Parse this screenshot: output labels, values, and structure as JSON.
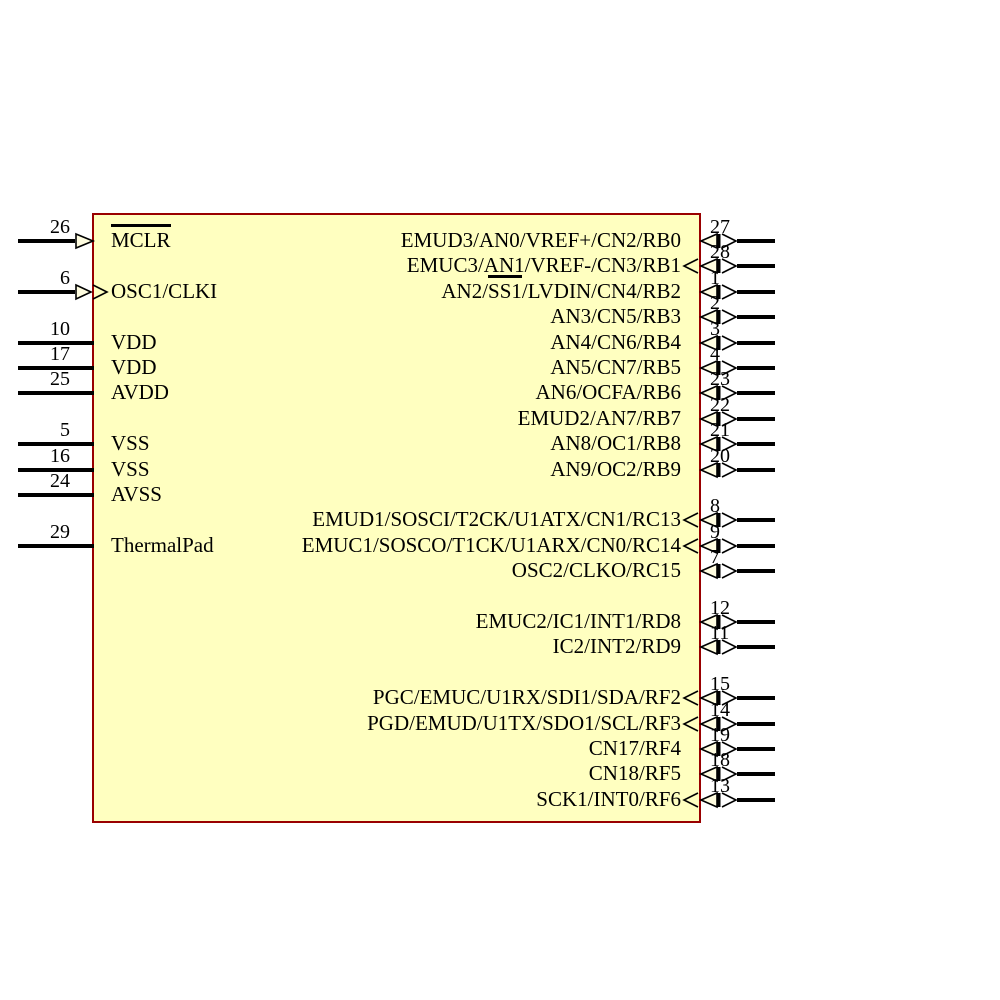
{
  "diagram": {
    "type": "ic-pinout-schematic",
    "colors": {
      "component_fill": "#FFFFC0",
      "component_border": "#990000",
      "line_color": "#000000",
      "text_color": "#000000",
      "arrow_fill": "#FFFDE0",
      "page_background": "#FFFFFF"
    },
    "icons": {
      "input": "hollow-right-triangle-arrow",
      "clock_input": "hollow-right-triangle-with-open-chevron",
      "bidirectional": "hollow-left-triangle-bar-open-right-chevron",
      "inner_chevron": "open-left-chevron"
    },
    "left_pins": [
      {
        "number": "26",
        "label": "MCLR",
        "overline": "MCLR",
        "arrow": "input",
        "row": 0
      },
      {
        "number": "6",
        "label": "OSC1/CLKI",
        "arrow": "clock-input",
        "row": 2
      },
      {
        "number": "10",
        "label": "VDD",
        "arrow": "none",
        "row": 4
      },
      {
        "number": "17",
        "label": "VDD",
        "arrow": "none",
        "row": 5
      },
      {
        "number": "25",
        "label": "AVDD",
        "arrow": "none",
        "row": 6
      },
      {
        "number": "5",
        "label": "VSS",
        "arrow": "none",
        "row": 8
      },
      {
        "number": "16",
        "label": "VSS",
        "arrow": "none",
        "row": 9
      },
      {
        "number": "24",
        "label": "AVSS",
        "arrow": "none",
        "row": 10
      },
      {
        "number": "29",
        "label": "ThermalPad",
        "arrow": "none",
        "row": 12
      }
    ],
    "right_pins": [
      {
        "number": "27",
        "label": "EMUD3/AN0/VREF+/CN2/RB0",
        "row": 0,
        "inner_chevron": false
      },
      {
        "number": "28",
        "label": "EMUC3/AN1/VREF-/CN3/RB1",
        "row": 1,
        "inner_chevron": true
      },
      {
        "number": "1",
        "label": "AN2/SS1/LVDIN/CN4/RB2",
        "overline": "SS1",
        "row": 2,
        "inner_chevron": false
      },
      {
        "number": "2",
        "label": "AN3/CN5/RB3",
        "row": 3,
        "inner_chevron": false
      },
      {
        "number": "3",
        "label": "AN4/CN6/RB4",
        "row": 4,
        "inner_chevron": false
      },
      {
        "number": "4",
        "label": "AN5/CN7/RB5",
        "row": 5,
        "inner_chevron": false
      },
      {
        "number": "23",
        "label": "AN6/OCFA/RB6",
        "row": 6,
        "inner_chevron": false
      },
      {
        "number": "22",
        "label": "EMUD2/AN7/RB7",
        "row": 7,
        "inner_chevron": false
      },
      {
        "number": "21",
        "label": "AN8/OC1/RB8",
        "row": 8,
        "inner_chevron": false
      },
      {
        "number": "20",
        "label": "AN9/OC2/RB9",
        "row": 9,
        "inner_chevron": false
      },
      {
        "number": "8",
        "label": "EMUD1/SOSCI/T2CK/U1ATX/CN1/RC13",
        "row": 11,
        "inner_chevron": true
      },
      {
        "number": "9",
        "label": "EMUC1/SOSCO/T1CK/U1ARX/CN0/RC14",
        "row": 12,
        "inner_chevron": true
      },
      {
        "number": "7",
        "label": "OSC2/CLKO/RC15",
        "row": 13,
        "inner_chevron": false
      },
      {
        "number": "12",
        "label": "EMUC2/IC1/INT1/RD8",
        "row": 15,
        "inner_chevron": false
      },
      {
        "number": "11",
        "label": "IC2/INT2/RD9",
        "row": 16,
        "inner_chevron": false
      },
      {
        "number": "15",
        "label": "PGC/EMUC/U1RX/SDI1/SDA/RF2",
        "row": 18,
        "inner_chevron": true
      },
      {
        "number": "14",
        "label": "PGD/EMUD/U1TX/SDO1/SCL/RF3",
        "row": 19,
        "inner_chevron": true
      },
      {
        "number": "19",
        "label": "CN17/RF4",
        "row": 20,
        "inner_chevron": false
      },
      {
        "number": "18",
        "label": "CN18/RF5",
        "row": 21,
        "inner_chevron": false
      },
      {
        "number": "13",
        "label": "SCK1/INT0/RF6",
        "row": 22,
        "inner_chevron": true
      }
    ]
  }
}
